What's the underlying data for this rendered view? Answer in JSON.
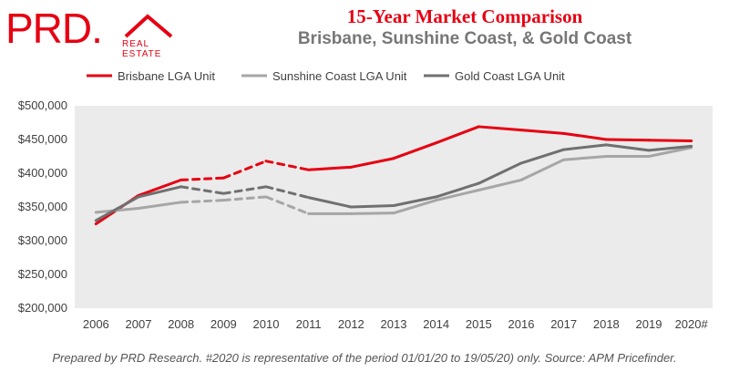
{
  "logo": {
    "brand": "PRD.",
    "tagline": "REAL ESTATE"
  },
  "title": "15-Year Market Comparison",
  "subtitle": "Brisbane, Sunshine Coast, & Gold Coast",
  "footer": "Prepared by PRD Research. #2020 is representative of the period 01/01/20 to 19/05/20) only. Source: APM Pricefinder.",
  "chart_data": {
    "type": "line",
    "x": [
      "2006",
      "2007",
      "2008",
      "2009",
      "2010",
      "2011",
      "2012",
      "2013",
      "2014",
      "2015",
      "2016",
      "2017",
      "2018",
      "2019",
      "2020#"
    ],
    "yticks": [
      "$200,000",
      "$250,000",
      "$300,000",
      "$350,000",
      "$400,000",
      "$450,000",
      "$500,000"
    ],
    "ylim": [
      200000,
      500000
    ],
    "legend_position": "top",
    "series": [
      {
        "name": "Brisbane LGA Unit",
        "color": "#e60012",
        "values": [
          325000,
          367000,
          390000,
          393000,
          418000,
          405000,
          409000,
          422000,
          445000,
          469000,
          464000,
          459000,
          450000,
          449000,
          448000
        ],
        "dashed_segments": [
          [
            2,
            5
          ]
        ]
      },
      {
        "name": "Sunshine Coast LGA Unit",
        "color": "#a6a6a6",
        "values": [
          342000,
          348000,
          357000,
          360000,
          365000,
          340000,
          340000,
          341000,
          360000,
          375000,
          390000,
          420000,
          425000,
          425000,
          438000
        ],
        "dashed_segments": [
          [
            2,
            5
          ]
        ]
      },
      {
        "name": "Gold Coast LGA Unit",
        "color": "#707070",
        "values": [
          330000,
          365000,
          380000,
          370000,
          380000,
          364000,
          350000,
          352000,
          365000,
          385000,
          415000,
          435000,
          442000,
          434000,
          440000
        ],
        "dashed_segments": [
          [
            2,
            5
          ]
        ]
      }
    ]
  }
}
